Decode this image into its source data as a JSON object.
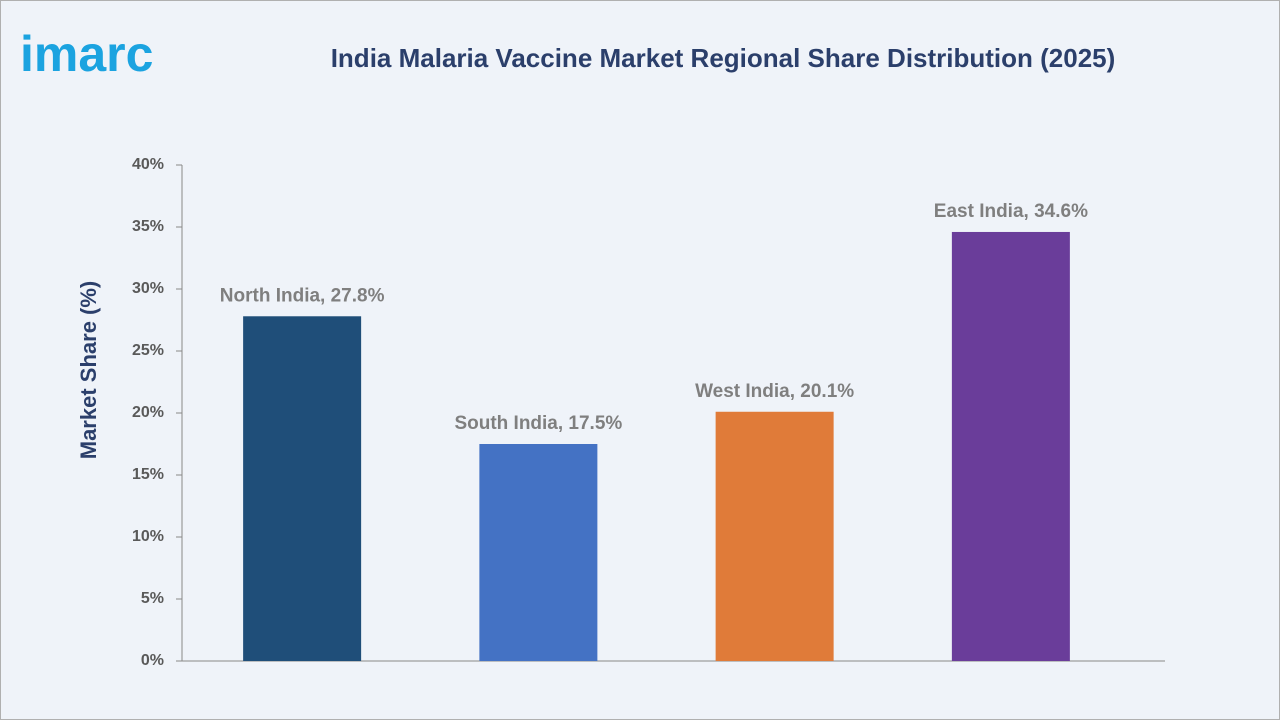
{
  "brand": "imarc",
  "chart_data": {
    "type": "bar",
    "title": "India Malaria Vaccine Market Regional Share Distribution (2025)",
    "y_label": "Market Share (%)",
    "values": [
      27.8,
      17.5,
      20.1,
      34.6
    ],
    "value_labels": [
      "North India, 27.8%",
      "South India, 17.5%",
      "West India, 20.1%",
      "East India, 34.6%"
    ],
    "colors": [
      "#1f4e79",
      "#4472c4",
      "#e07b39",
      "#6a3d9a"
    ],
    "ylim": [
      0,
      40
    ],
    "yticks": [
      {
        "value": 0,
        "label": "0%"
      },
      {
        "value": 5,
        "label": "5%"
      },
      {
        "value": 10,
        "label": "10%"
      },
      {
        "value": 15,
        "label": "15%"
      },
      {
        "value": 20,
        "label": "20%"
      },
      {
        "value": 25,
        "label": "25%"
      },
      {
        "value": 30,
        "label": "30%"
      },
      {
        "value": 35,
        "label": "35%"
      },
      {
        "value": 40,
        "label": "40%"
      }
    ],
    "grid": false
  }
}
